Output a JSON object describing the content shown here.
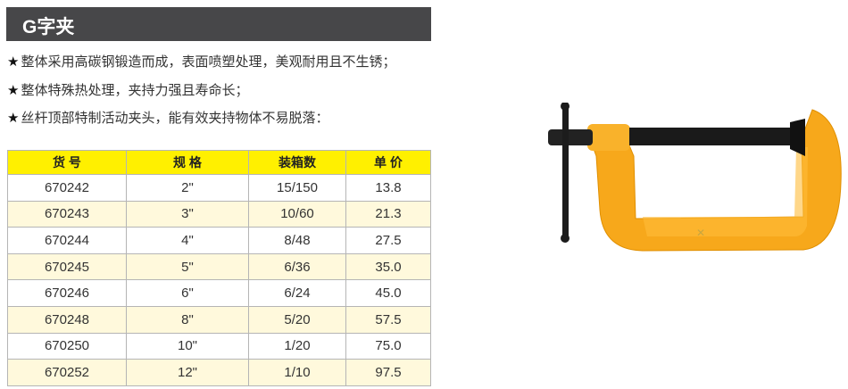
{
  "title": "G字夹",
  "features": [
    "整体采用高碳钢锻造而成，表面喷塑处理，美观耐用且不生锈；",
    "整体特殊热处理，夹持力强且寿命长；",
    "丝杆顶部特制活动夹头，能有效夹持物体不易脱落："
  ],
  "star": "★",
  "table": {
    "headers": [
      "货 号",
      "规 格",
      "装箱数",
      "单 价"
    ],
    "rows": [
      [
        "670242",
        "2\"",
        "15/150",
        "13.8"
      ],
      [
        "670243",
        "3\"",
        "10/60",
        "21.3"
      ],
      [
        "670244",
        "4\"",
        "8/48",
        "27.5"
      ],
      [
        "670245",
        "5\"",
        "6/36",
        "35.0"
      ],
      [
        "670246",
        "6\"",
        "6/24",
        "45.0"
      ],
      [
        "670248",
        "8\"",
        "5/20",
        "57.5"
      ],
      [
        "670250",
        "10\"",
        "1/20",
        "75.0"
      ],
      [
        "670252",
        "12\"",
        "1/10",
        "97.5"
      ]
    ]
  },
  "colors": {
    "header_bar": "#474749",
    "table_header": "#fff000",
    "row_alt": "#fff9dc",
    "clamp": "#f7a81b"
  }
}
